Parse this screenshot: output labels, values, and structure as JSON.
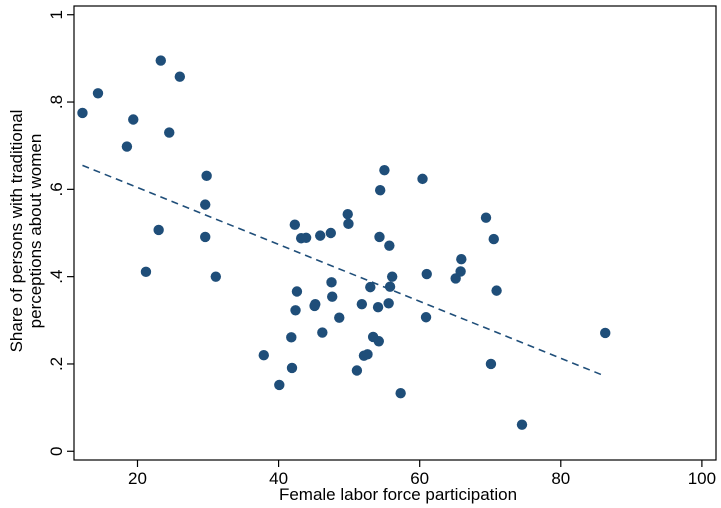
{
  "chart_data": {
    "type": "scatter",
    "xlabel": "Female labor force participation",
    "ylabel_lines": [
      "Share of persons with traditional",
      "perceptions about women"
    ],
    "xlim": [
      11,
      102
    ],
    "ylim": [
      -0.02,
      1.02
    ],
    "x_ticks": [
      20,
      40,
      60,
      80,
      100
    ],
    "y_ticks": [
      0,
      0.2,
      0.4,
      0.6,
      0.8,
      1
    ],
    "x_tick_labels": [
      "20",
      "40",
      "60",
      "80",
      "100"
    ],
    "y_tick_labels": [
      "0",
      ".2",
      ".4",
      ".6",
      ".8",
      "1"
    ],
    "grid": false,
    "legend": "none",
    "colors": {
      "points": "#1f4e79",
      "fit_line": "#1f4e79",
      "axis": "#000000"
    },
    "series": [
      {
        "values": [
          [
            12.2,
            0.775
          ],
          [
            14.4,
            0.82
          ],
          [
            18.5,
            0.698
          ],
          [
            19.4,
            0.76
          ],
          [
            21.2,
            0.411
          ],
          [
            23.0,
            0.507
          ],
          [
            23.3,
            0.895
          ],
          [
            24.5,
            0.73
          ],
          [
            26.0,
            0.858
          ],
          [
            29.6,
            0.565
          ],
          [
            29.6,
            0.491
          ],
          [
            29.8,
            0.631
          ],
          [
            31.1,
            0.4
          ],
          [
            37.9,
            0.22
          ],
          [
            40.1,
            0.152
          ],
          [
            41.8,
            0.261
          ],
          [
            41.9,
            0.191
          ],
          [
            42.3,
            0.519
          ],
          [
            42.4,
            0.323
          ],
          [
            42.6,
            0.366
          ],
          [
            43.2,
            0.488
          ],
          [
            43.9,
            0.489
          ],
          [
            45.1,
            0.333
          ],
          [
            45.2,
            0.337
          ],
          [
            45.9,
            0.494
          ],
          [
            46.2,
            0.272
          ],
          [
            47.4,
            0.5
          ],
          [
            47.5,
            0.387
          ],
          [
            47.6,
            0.354
          ],
          [
            48.6,
            0.306
          ],
          [
            49.8,
            0.543
          ],
          [
            49.9,
            0.521
          ],
          [
            51.1,
            0.185
          ],
          [
            51.8,
            0.337
          ],
          [
            52.1,
            0.219
          ],
          [
            52.6,
            0.222
          ],
          [
            53.0,
            0.376
          ],
          [
            53.4,
            0.262
          ],
          [
            54.1,
            0.33
          ],
          [
            54.2,
            0.252
          ],
          [
            54.3,
            0.491
          ],
          [
            54.4,
            0.598
          ],
          [
            55.0,
            0.644
          ],
          [
            55.6,
            0.339
          ],
          [
            55.7,
            0.471
          ],
          [
            55.8,
            0.377
          ],
          [
            56.1,
            0.4
          ],
          [
            57.3,
            0.133
          ],
          [
            60.4,
            0.624
          ],
          [
            60.9,
            0.307
          ],
          [
            61.0,
            0.406
          ],
          [
            65.1,
            0.396
          ],
          [
            65.8,
            0.412
          ],
          [
            65.9,
            0.44
          ],
          [
            69.4,
            0.535
          ],
          [
            70.1,
            0.2
          ],
          [
            70.5,
            0.486
          ],
          [
            70.9,
            0.368
          ],
          [
            74.5,
            0.061
          ],
          [
            86.3,
            0.271
          ]
        ]
      }
    ],
    "fit_line": {
      "style": "dashed",
      "x": [
        12.2,
        86.3
      ],
      "y": [
        0.655,
        0.172
      ]
    }
  }
}
